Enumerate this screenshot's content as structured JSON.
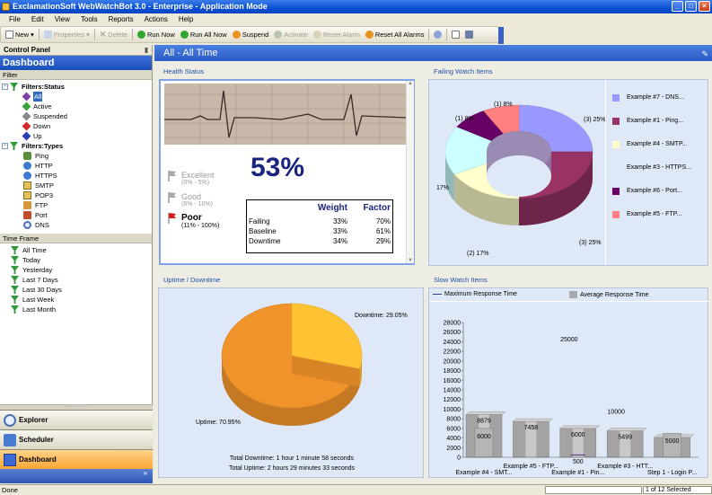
{
  "window": {
    "title": "ExclamationSoft WebWatchBot 3.0 - Enterprise - Application Mode",
    "controls": [
      "_",
      "□",
      "×"
    ]
  },
  "menu": [
    "File",
    "Edit",
    "View",
    "Tools",
    "Reports",
    "Actions",
    "Help"
  ],
  "toolbar": {
    "new": "New",
    "properties": "Properties",
    "delete": "Delete",
    "run_now": "Run Now",
    "run_all_now": "Run All Now",
    "suspend": "Suspend",
    "activate": "Activate",
    "reset_alarm": "Reset Alarm",
    "reset_all_alarms": "Reset All Alarms"
  },
  "control_panel": {
    "title": "Control Panel",
    "header": "Dashboard",
    "filter_label": "Filter",
    "filters_status": {
      "label": "Filters:Status",
      "items": [
        "All",
        "Active",
        "Suspended",
        "Down",
        "Up"
      ]
    },
    "filters_types": {
      "label": "Filters:Types",
      "items": [
        "Ping",
        "HTTP",
        "HTTPS",
        "SMTP",
        "POP3",
        "FTP",
        "Port",
        "DNS"
      ]
    },
    "timeframe_label": "Time Frame",
    "timeframe_items": [
      "All Time",
      "Today",
      "Yesterday",
      "Last 7 Days",
      "Last 30 Days",
      "Last Week",
      "Last Month"
    ],
    "nav": [
      "Explorer",
      "Scheduler",
      "Dashboard"
    ]
  },
  "main": {
    "title": "All - All Time",
    "health": {
      "title": "Health Status",
      "percent": "53%",
      "levels": [
        {
          "name": "Excellent",
          "range": "(0% - 5%)"
        },
        {
          "name": "Good",
          "range": "(6% - 10%)"
        },
        {
          "name": "Poor",
          "range": "(11% - 100%)"
        }
      ],
      "table": {
        "headers": [
          "",
          "Weight",
          "Factor"
        ],
        "rows": [
          [
            "Failing",
            "33%",
            "70%"
          ],
          [
            "Baseline",
            "33%",
            "61%"
          ],
          [
            "Downtime",
            "34%",
            "29%"
          ]
        ]
      }
    },
    "failing": {
      "title": "Failing Watch Items",
      "labels": [
        "(1) 8%",
        "(1) 8%",
        "(3) 25%",
        "17%",
        "(2) 17%",
        "(3) 25%"
      ],
      "legend": [
        {
          "label": "Example #7 - DNS...",
          "color": "#9999ff"
        },
        {
          "label": "Example #1 - Ping...",
          "color": "#993366"
        },
        {
          "label": "Example #4 - SMTP...",
          "color": "#ffffcc"
        },
        {
          "label": "Example #3 - HTTPS...",
          "color": "#ccffff"
        },
        {
          "label": "Example #6 - Port...",
          "color": "#660066"
        },
        {
          "label": "Example #5 - FTP...",
          "color": "#ff8080"
        }
      ]
    },
    "uptime": {
      "title": "Uptime / Downtime",
      "downtime_label": "Downtime: 29.05%",
      "uptime_label": "Uptime: 70.95%",
      "total_downtime": "Total Downtime: 1 hour 1 minute 58 seconds",
      "total_uptime": "Total Uptime: 2 hours 29 minutes 33 seconds",
      "colors": {
        "uptime": "#f0932b",
        "downtime": "#ffc233"
      }
    },
    "slow": {
      "title": "Slow Watch Items",
      "legend_max": "Maximum Response Time",
      "legend_avg": "Average Response Time"
    }
  },
  "chart_data": [
    {
      "type": "pie",
      "title": "Failing Watch Items",
      "labels": [
        "Example #7 - DNS...",
        "Example #1 - Ping...",
        "Example #4 - SMTP...",
        "Example #3 - HTTPS...",
        "Example #6 - Port...",
        "Example #5 - FTP..."
      ],
      "values": [
        25,
        25,
        17,
        17,
        8,
        8
      ],
      "colors": [
        "#9999ff",
        "#993366",
        "#ffffcc",
        "#ccffff",
        "#660066",
        "#ff8080"
      ]
    },
    {
      "type": "pie",
      "title": "Uptime / Downtime",
      "labels": [
        "Uptime",
        "Downtime"
      ],
      "values": [
        70.95,
        29.05
      ],
      "colors": [
        "#f0932b",
        "#ffc233"
      ]
    },
    {
      "type": "bar",
      "title": "Slow Watch Items",
      "categories": [
        "Example #4 - SMT...",
        "Example #5 - FTP...",
        "Example #1 - Pin...",
        "Example #3 - HTT...",
        "Step 1 - Login P..."
      ],
      "series": [
        {
          "name": "Maximum Response Time",
          "values": [
            null,
            null,
            25000,
            10000,
            null
          ],
          "labels": [
            "",
            "",
            "25000",
            "10000",
            ""
          ]
        },
        {
          "name": "Average Response Time",
          "values": [
            8879,
            7458,
            6000,
            5499,
            4139
          ],
          "labels": [
            "8879",
            "7458",
            "6000",
            "5499",
            "4139"
          ]
        },
        {
          "name": "inner",
          "values": [
            6000,
            null,
            500,
            null,
            5000
          ],
          "labels": [
            "6000",
            "",
            "500",
            "",
            "5000"
          ]
        }
      ],
      "yticks": [
        "28000",
        "26000",
        "24000",
        "22000",
        "20000",
        "18000",
        "16000",
        "14000",
        "12000",
        "10000",
        "8000",
        "6000",
        "4000",
        "2000",
        "0"
      ],
      "ylim": [
        0,
        28000
      ]
    }
  ],
  "status_bar": {
    "left": "Done",
    "right": "1 of 12 Selected"
  }
}
